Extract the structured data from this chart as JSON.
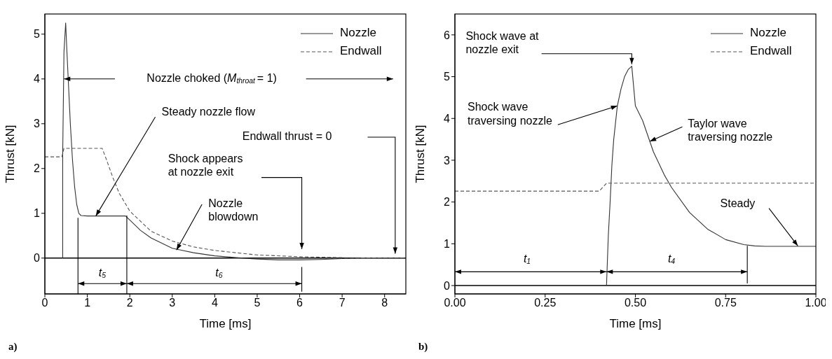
{
  "chart_data": [
    {
      "type": "line",
      "xlabel": "Time [ms]",
      "ylabel": "Thrust [kN]",
      "xlim": [
        0,
        8.5
      ],
      "ylim": [
        -0.8,
        5.45
      ],
      "xticks": [
        0,
        1,
        2,
        3,
        4,
        5,
        6,
        7,
        8
      ],
      "yticks": [
        0,
        1,
        2,
        3,
        4,
        5
      ],
      "legend": "top right",
      "grid": false,
      "series": [
        {
          "name": "Nozzle",
          "color": "#333333",
          "line_style": "solid",
          "x": [
            0.42,
            0.42,
            0.45,
            0.49,
            0.52,
            0.55,
            0.6,
            0.65,
            0.7,
            0.75,
            0.8,
            0.85,
            1.0,
            1.5,
            1.9,
            2.0,
            2.25,
            2.5,
            3.0,
            3.5,
            4.0,
            4.5,
            5.0,
            5.5,
            6.0,
            6.5,
            7.0,
            7.5,
            8.0,
            8.5
          ],
          "values": [
            0,
            2.3,
            4.6,
            5.25,
            4.6,
            4.0,
            3.0,
            2.2,
            1.6,
            1.2,
            1.0,
            0.95,
            0.94,
            0.94,
            0.94,
            0.85,
            0.62,
            0.45,
            0.22,
            0.12,
            0.05,
            0.01,
            -0.02,
            -0.04,
            -0.04,
            -0.03,
            -0.01,
            0,
            0,
            0
          ]
        },
        {
          "name": "Endwall",
          "color": "#555555",
          "line_style": "dashed",
          "x": [
            0,
            0.4,
            0.45,
            1.0,
            1.35,
            1.45,
            1.6,
            1.75,
            2.0,
            2.5,
            3.0,
            3.5,
            4.0,
            5.0,
            6.0,
            7.0,
            8.0,
            8.5
          ],
          "values": [
            2.26,
            2.26,
            2.45,
            2.45,
            2.45,
            2.2,
            1.8,
            1.45,
            1.05,
            0.6,
            0.38,
            0.25,
            0.17,
            0.07,
            0.03,
            0.01,
            0,
            0
          ]
        }
      ],
      "ref_lines": [
        {
          "axis": "y",
          "value": 0,
          "color": "#000000",
          "line_style": "solid"
        }
      ],
      "annotations": [
        "Nozzle choked (M$_{throat}$ = 1)",
        {
          "text": "Steady nozzle flow",
          "x": 1.2,
          "y": 0.94
        },
        "Shock appears at nozzle exit",
        {
          "text": "Nozzle blowdown",
          "x": 3.1,
          "y": 0.18
        },
        "Endwall thrust = 0",
        "t$_{5}$",
        "t$_{6}$",
        "a)"
      ]
    },
    {
      "type": "line",
      "xlabel": "Time [ms]",
      "ylabel": "Thrust [kN]",
      "xlim": [
        0,
        1
      ],
      "ylim": [
        -0.2,
        6.5
      ],
      "xticks": [
        {
          "value": 0,
          "label": "0.00"
        },
        {
          "value": 0.25,
          "label": "0.25"
        },
        {
          "value": 0.5,
          "label": "0.50"
        },
        {
          "value": 0.75,
          "label": "0.75"
        },
        {
          "value": 1,
          "label": "1.00"
        }
      ],
      "yticks": [
        0,
        1,
        2,
        3,
        4,
        5,
        6
      ],
      "legend": "top right",
      "grid": false,
      "series": [
        {
          "name": "Nozzle",
          "color": "#333333",
          "line_style": "solid",
          "x": [
            0.42,
            0.425,
            0.43,
            0.435,
            0.44,
            0.45,
            0.46,
            0.47,
            0.48,
            0.49,
            0.5,
            0.52,
            0.55,
            0.58,
            0.6,
            0.65,
            0.7,
            0.75,
            0.8,
            0.83,
            0.86,
            0.9,
            1.0
          ],
          "values": [
            0,
            1.2,
            2.0,
            2.9,
            3.5,
            4.3,
            4.7,
            5.0,
            5.17,
            5.25,
            4.3,
            3.95,
            3.2,
            2.65,
            2.35,
            1.75,
            1.35,
            1.1,
            0.98,
            0.95,
            0.94,
            0.94,
            0.94
          ]
        },
        {
          "name": "Endwall",
          "color": "#555555",
          "line_style": "dashed",
          "x": [
            0,
            0.4,
            0.42,
            1.0
          ],
          "values": [
            2.26,
            2.26,
            2.45,
            2.45
          ]
        }
      ],
      "ref_lines": [
        {
          "axis": "y",
          "value": 0,
          "color": "#000000",
          "line_style": "solid"
        }
      ],
      "annotations": [
        {
          "text": "Shock wave at nozzle exit",
          "x": 0.49,
          "y": 5.3
        },
        {
          "text": "Shock wave traversing nozzle",
          "x": 0.45,
          "y": 4.3
        },
        {
          "text": "Taylor wave traversing nozzle",
          "x": 0.54,
          "y": 3.45
        },
        {
          "text": "Steady",
          "x": 0.95,
          "y": 0.95
        },
        "t$_{1}$",
        "t$_{4}$",
        "b)"
      ]
    }
  ]
}
